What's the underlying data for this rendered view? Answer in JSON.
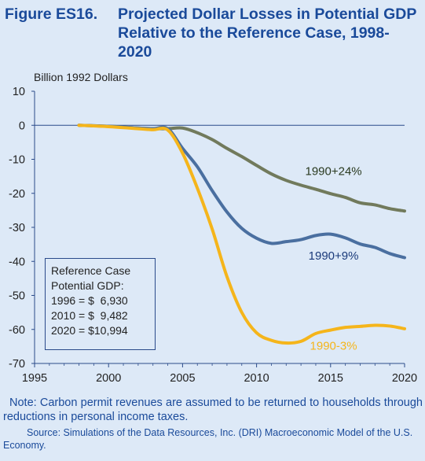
{
  "figure": {
    "label": "Figure ES16.",
    "title": "Projected Dollar Losses in Potential GDP Relative to the Reference Case, 1998-2020"
  },
  "chart_data": {
    "type": "line",
    "ylabel": "Billion 1992 Dollars",
    "xlim": [
      1995,
      2020
    ],
    "ylim": [
      -70,
      10
    ],
    "x_ticks": [
      "1995",
      "2000",
      "2005",
      "2010",
      "2015",
      "2020"
    ],
    "y_ticks": [
      "10",
      "0",
      "-10",
      "-20",
      "-30",
      "-40",
      "-50",
      "-60",
      "-70"
    ],
    "series": [
      {
        "name": "1990+24%",
        "color": "#717a5c",
        "x": [
          1998,
          2000,
          2002,
          2003,
          2004,
          2005,
          2006,
          2007,
          2008,
          2009,
          2010,
          2011,
          2012,
          2013,
          2014,
          2015,
          2016,
          2017,
          2018,
          2019,
          2020
        ],
        "y": [
          0,
          -0.3,
          -0.8,
          -1.0,
          -1.0,
          -0.8,
          -2.2,
          -4.2,
          -6.8,
          -9.2,
          -11.8,
          -14.3,
          -16.2,
          -17.6,
          -18.8,
          -20.1,
          -21.2,
          -22.8,
          -23.4,
          -24.5,
          -25.2
        ]
      },
      {
        "name": "1990+9%",
        "color": "#4a6fa0",
        "x": [
          1998,
          2000,
          2002,
          2003,
          2004,
          2005,
          2006,
          2007,
          2008,
          2009,
          2010,
          2011,
          2012,
          2013,
          2014,
          2015,
          2016,
          2017,
          2018,
          2019,
          2020
        ],
        "y": [
          0,
          -0.3,
          -0.8,
          -1.0,
          -1.0,
          -6.8,
          -12.2,
          -19.2,
          -25.5,
          -30.3,
          -33.2,
          -34.7,
          -34.2,
          -33.6,
          -32.4,
          -32.0,
          -33.1,
          -34.9,
          -35.9,
          -37.7,
          -38.9
        ]
      },
      {
        "name": "1990-3%",
        "color": "#f5b51b",
        "x": [
          1998,
          2000,
          2002,
          2003,
          2004,
          2005,
          2006,
          2007,
          2008,
          2009,
          2010,
          2011,
          2012,
          2013,
          2014,
          2015,
          2016,
          2017,
          2018,
          2019,
          2020
        ],
        "y": [
          0,
          -0.4,
          -1.0,
          -1.3,
          -1.4,
          -8.2,
          -18.5,
          -30.5,
          -44.5,
          -55.0,
          -61.0,
          -63.2,
          -64.0,
          -63.5,
          -61.2,
          -60.2,
          -59.4,
          -59.1,
          -58.8,
          -59.0,
          -59.8
        ]
      }
    ],
    "annotations": [
      {
        "text": "1990+24%",
        "x": 2015.2,
        "y": -13.5,
        "color": "#2a3a20"
      },
      {
        "text": "1990+9%",
        "x": 2015.2,
        "y": -38.3,
        "color": "#1a3a7a"
      },
      {
        "text": "1990-3%",
        "x": 2015.2,
        "y": -64.8,
        "color": "#f5b51b"
      }
    ]
  },
  "reference_box": {
    "lines": [
      "Reference Case",
      "Potential GDP:",
      "1996 = $  6,930",
      "2010 = $  9,482",
      "2020 = $10,994"
    ]
  },
  "footer": {
    "note": "Note: Carbon permit revenues are assumed to be returned to households through reductions in personal income taxes.",
    "source": "Source: Simulations of the Data Resources, Inc. (DRI) Macroeconomic Model of the U.S. Economy."
  },
  "colors": {
    "background": "#dde9f7",
    "title": "#1a4a9a",
    "axis": "#2a4a8a"
  }
}
